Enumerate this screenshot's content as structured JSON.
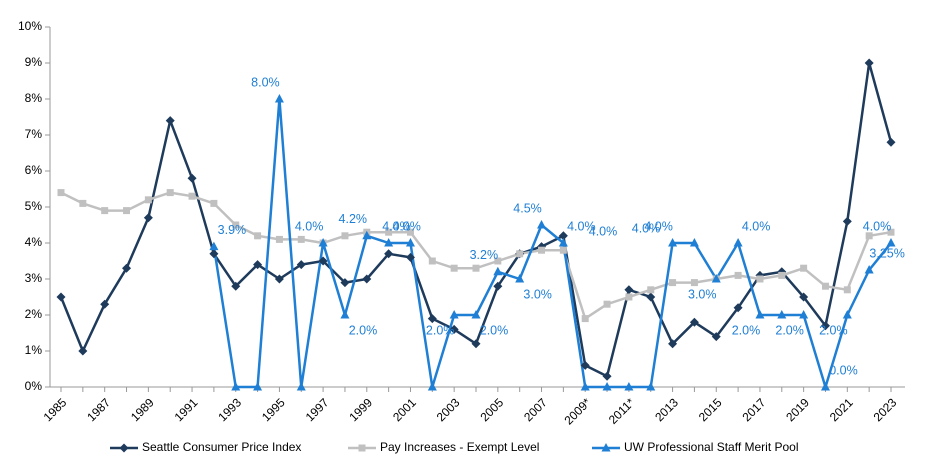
{
  "chart_data": {
    "type": "line",
    "categories": [
      "1985",
      null,
      "1987",
      null,
      "1989",
      null,
      "1991",
      null,
      "1993",
      null,
      "1995",
      null,
      "1997",
      null,
      "1999",
      null,
      "2001",
      null,
      "2003",
      null,
      "2005",
      null,
      "2007",
      null,
      "2009*",
      null,
      "2011*",
      null,
      "2013",
      null,
      "2015",
      null,
      "2017",
      null,
      "2019",
      null,
      "2021",
      null,
      "2023"
    ],
    "ylim": [
      0,
      10
    ],
    "yticks": [
      {
        "value": 0,
        "label": "0%"
      },
      {
        "value": 1,
        "label": "1%"
      },
      {
        "value": 2,
        "label": "2%"
      },
      {
        "value": 3,
        "label": "3%"
      },
      {
        "value": 4,
        "label": "4%"
      },
      {
        "value": 5,
        "label": "5%"
      },
      {
        "value": 6,
        "label": "6%"
      },
      {
        "value": 7,
        "label": "7%"
      },
      {
        "value": 8,
        "label": "8%"
      },
      {
        "value": 9,
        "label": "9%"
      },
      {
        "value": 10,
        "label": "10%"
      }
    ],
    "grid": false,
    "legend": "bottom",
    "series": [
      {
        "name": "Seattle Consumer Price Index",
        "color": "#1f3b5c",
        "marker": "diamond",
        "values": [
          2.5,
          1.0,
          2.3,
          3.3,
          4.7,
          7.4,
          5.8,
          3.7,
          2.8,
          3.4,
          3.0,
          3.4,
          3.5,
          2.9,
          3.0,
          3.7,
          3.6,
          1.9,
          1.6,
          1.2,
          2.8,
          3.7,
          3.9,
          4.2,
          0.6,
          0.3,
          2.7,
          2.5,
          1.2,
          1.8,
          1.4,
          2.2,
          3.1,
          3.2,
          2.5,
          1.7,
          4.6,
          9.0,
          6.8
        ]
      },
      {
        "name": "Pay Increases - Exempt Level",
        "color": "#c0c0c0",
        "marker": "square",
        "values": [
          5.4,
          5.1,
          4.9,
          4.9,
          5.2,
          5.4,
          5.3,
          5.1,
          4.5,
          4.2,
          4.1,
          4.1,
          4.0,
          4.2,
          4.3,
          4.3,
          4.3,
          3.5,
          3.3,
          3.3,
          3.5,
          3.7,
          3.8,
          3.8,
          1.9,
          2.3,
          2.5,
          2.7,
          2.9,
          2.9,
          3.0,
          3.1,
          3.0,
          3.1,
          3.3,
          2.8,
          2.7,
          4.2,
          4.3
        ]
      },
      {
        "name": "UW Professional Staff Merit Pool",
        "color": "#1f7fd4",
        "marker": "triangle",
        "values": [
          null,
          null,
          null,
          null,
          null,
          null,
          null,
          3.9,
          0,
          0,
          8.0,
          0,
          4.0,
          2.0,
          4.2,
          4.0,
          4.0,
          0,
          2.0,
          2.0,
          3.2,
          3.0,
          4.5,
          4.0,
          0,
          0,
          0,
          0,
          4.0,
          4.0,
          3.0,
          4.0,
          2.0,
          2.0,
          2.0,
          0,
          2.0,
          3.25,
          4.0
        ],
        "value_labels": [
          null,
          null,
          null,
          null,
          null,
          null,
          null,
          "3.9%",
          null,
          null,
          "8.0%",
          null,
          "4.0%",
          "2.0%",
          "4.2%",
          "4.0%",
          "4.0%",
          null,
          "2.0%",
          "2.0%",
          "3.2%",
          "3.0%",
          "4.5%",
          "4.0%",
          null,
          null,
          null,
          null,
          "4.0%",
          null,
          "3.0%",
          "4.0%",
          "2.0%",
          null,
          "2.0%",
          "0.0%",
          "2.0%",
          "3.25%",
          "4.0%"
        ]
      }
    ],
    "annotations": [
      "4.0%",
      "4.0%"
    ]
  }
}
